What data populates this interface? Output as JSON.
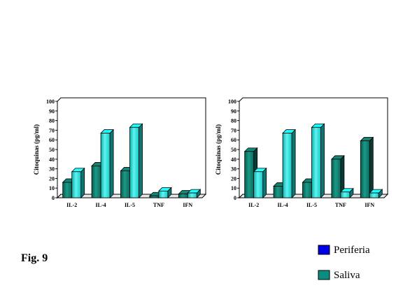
{
  "figure_label": "Fig. 9",
  "legend": [
    {
      "label": "Periferia",
      "color": "#0000e6"
    },
    {
      "label": "Saliva",
      "color": "#0a8c80"
    }
  ],
  "colors": {
    "periferia_bar": "#0e6b5e",
    "saliva_bar": "#18d8d4"
  },
  "chart_data": [
    {
      "type": "bar",
      "categories": [
        "IL-2",
        "IL-4",
        "IL-5",
        "TNF",
        "IFN"
      ],
      "series": [
        {
          "name": "Periferia",
          "values": [
            16,
            33,
            28,
            2,
            4
          ]
        },
        {
          "name": "Saliva",
          "values": [
            27,
            67,
            73,
            7,
            5
          ]
        }
      ],
      "ylabel": "Citoquinas (pg/ml)",
      "ylim": [
        0,
        100
      ],
      "yticks": [
        "0",
        "10",
        "20",
        "30",
        "40",
        "50",
        "60",
        "70",
        "80",
        "90",
        "100"
      ],
      "grid": false
    },
    {
      "type": "bar",
      "categories": [
        "IL-2",
        "IL-4",
        "IL-5",
        "TNF",
        "IFN"
      ],
      "series": [
        {
          "name": "Periferia",
          "values": [
            48,
            12,
            16,
            40,
            59
          ]
        },
        {
          "name": "Saliva",
          "values": [
            27,
            67,
            73,
            6,
            5
          ]
        }
      ],
      "ylabel": "Citoquinas (pg/ml)",
      "ylim": [
        0,
        100
      ],
      "yticks": [
        "0",
        "10",
        "20",
        "30",
        "40",
        "50",
        "60",
        "70",
        "80",
        "90",
        "100"
      ],
      "grid": false
    }
  ]
}
